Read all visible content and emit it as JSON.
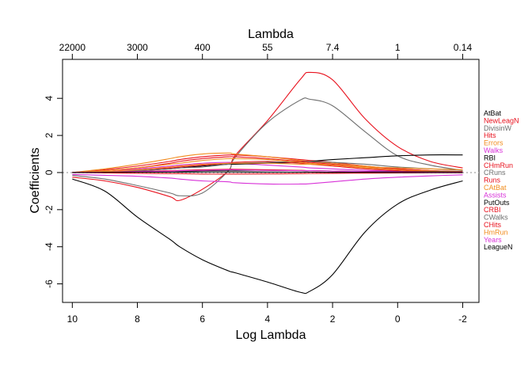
{
  "chart_data": {
    "type": "line",
    "xlabel": "Log Lambda",
    "ylabel": "Coefficients",
    "top_axis_label": "Lambda",
    "xlim": [
      10.3,
      -2.5
    ],
    "ylim": [
      -7,
      6.1
    ],
    "x_ticks": [
      10,
      8,
      6,
      4,
      2,
      0,
      -2
    ],
    "x_tick_labels": [
      "10",
      "8",
      "6",
      "4",
      "2",
      "0",
      "-2"
    ],
    "y_ticks": [
      -6,
      -4,
      -2,
      0,
      2,
      4
    ],
    "y_tick_labels": [
      "-6",
      "-4",
      "-2",
      "0",
      "2",
      "4"
    ],
    "top_ticks": [
      10,
      8,
      6,
      4,
      2,
      0,
      -2
    ],
    "top_tick_labels": [
      "22000",
      "3000",
      "400",
      "55",
      "7.4",
      "1",
      "0.14"
    ],
    "zero_line": true,
    "grid": false,
    "legend_position": "right",
    "x": [
      10,
      9,
      8,
      7,
      6.7,
      6,
      5.2,
      5,
      4,
      3,
      2.7,
      2,
      1,
      0,
      -1,
      -2
    ],
    "series": [
      {
        "name": "AtBat",
        "color": "#000000",
        "values": [
          -0.35,
          -1.0,
          -2.4,
          -3.6,
          -4.0,
          -4.7,
          -5.3,
          -5.4,
          -5.9,
          -6.45,
          -6.4,
          -5.5,
          -3.2,
          -1.7,
          -0.95,
          -0.45
        ]
      },
      {
        "name": "NewLeagN",
        "color": "#e8111d",
        "values": [
          -0.25,
          -0.45,
          -0.8,
          -1.3,
          -1.5,
          -0.9,
          0.1,
          0.9,
          2.8,
          5.0,
          5.4,
          5.0,
          2.9,
          1.4,
          0.6,
          0.25
        ]
      },
      {
        "name": "DivisinW",
        "color": "#6e6e6e",
        "values": [
          -0.15,
          -0.35,
          -0.7,
          -1.1,
          -1.25,
          -1.1,
          0.1,
          0.8,
          2.7,
          3.9,
          3.95,
          3.6,
          2.2,
          0.9,
          0.4,
          0.12
        ]
      },
      {
        "name": "Hits",
        "color": "#e8111d",
        "values": [
          0.0,
          0.15,
          0.35,
          0.6,
          0.7,
          0.85,
          0.95,
          0.95,
          0.85,
          0.7,
          0.65,
          0.55,
          0.35,
          0.2,
          0.1,
          0.05
        ]
      },
      {
        "name": "Errors",
        "color": "#f18c1e",
        "values": [
          0.0,
          0.2,
          0.45,
          0.75,
          0.85,
          1.0,
          1.05,
          1.0,
          0.85,
          0.65,
          0.6,
          0.5,
          0.35,
          0.2,
          0.1,
          0.05
        ]
      },
      {
        "name": "Walks",
        "color": "#d832d8",
        "values": [
          0.0,
          0.1,
          0.2,
          0.35,
          0.4,
          0.5,
          0.55,
          0.5,
          0.4,
          0.3,
          0.25,
          0.2,
          0.12,
          0.08,
          0.05,
          0.03
        ]
      },
      {
        "name": "RBI",
        "color": "#000000",
        "values": [
          0.0,
          0.05,
          0.1,
          0.2,
          0.25,
          0.35,
          0.45,
          0.45,
          0.5,
          0.55,
          0.6,
          0.7,
          0.8,
          0.9,
          0.95,
          0.95
        ]
      },
      {
        "name": "CHmRun",
        "color": "#e8111d",
        "values": [
          0.0,
          0.05,
          0.15,
          0.25,
          0.3,
          0.4,
          0.5,
          0.55,
          0.6,
          0.5,
          0.45,
          0.35,
          0.2,
          0.1,
          0.05,
          0.02
        ]
      },
      {
        "name": "CRuns",
        "color": "#6e6e6e",
        "values": [
          0.0,
          0.05,
          0.1,
          0.2,
          0.25,
          0.3,
          0.45,
          0.5,
          0.55,
          0.6,
          0.6,
          0.55,
          0.45,
          0.3,
          0.2,
          0.12
        ]
      },
      {
        "name": "Runs",
        "color": "#e8111d",
        "values": [
          0.0,
          0.1,
          0.25,
          0.5,
          0.6,
          0.75,
          0.85,
          0.85,
          0.75,
          0.6,
          0.55,
          0.45,
          0.3,
          0.2,
          0.1,
          0.05
        ]
      },
      {
        "name": "CAtBat",
        "color": "#f18c1e",
        "values": [
          0.0,
          0.1,
          0.25,
          0.45,
          0.5,
          0.65,
          0.75,
          0.75,
          0.7,
          0.55,
          0.5,
          0.4,
          0.25,
          0.15,
          0.08,
          0.04
        ]
      },
      {
        "name": "Assists",
        "color": "#d832d8",
        "values": [
          -0.1,
          -0.15,
          -0.2,
          -0.3,
          -0.35,
          -0.45,
          -0.5,
          -0.55,
          -0.62,
          -0.62,
          -0.6,
          -0.5,
          -0.35,
          -0.25,
          -0.18,
          -0.12
        ]
      },
      {
        "name": "PutOuts",
        "color": "#000000",
        "values": [
          0.0,
          0.02,
          0.05,
          0.08,
          0.08,
          0.1,
          0.12,
          0.12,
          0.12,
          0.1,
          0.1,
          0.08,
          0.06,
          0.05,
          0.04,
          0.03
        ]
      },
      {
        "name": "CRBI",
        "color": "#e8111d",
        "values": [
          0.0,
          0.03,
          0.06,
          0.1,
          0.12,
          0.15,
          0.18,
          0.18,
          0.15,
          0.12,
          0.1,
          0.08,
          0.05,
          0.03,
          0.02,
          0.01
        ]
      },
      {
        "name": "CWalks",
        "color": "#6e6e6e",
        "values": [
          0.0,
          0.01,
          0.02,
          0.03,
          0.03,
          0.04,
          0.04,
          0.04,
          0.03,
          0.02,
          0.02,
          0.01,
          0.01,
          0.0,
          0.0,
          0.0
        ]
      },
      {
        "name": "CHits",
        "color": "#e8111d",
        "values": [
          0.0,
          -0.02,
          -0.04,
          -0.06,
          -0.06,
          -0.08,
          -0.08,
          -0.08,
          -0.07,
          -0.06,
          -0.05,
          -0.04,
          -0.03,
          -0.02,
          -0.01,
          -0.01
        ]
      },
      {
        "name": "HmRun",
        "color": "#f18c1e",
        "values": [
          0.0,
          0.05,
          0.15,
          0.3,
          0.35,
          0.45,
          0.5,
          0.5,
          0.5,
          0.45,
          0.45,
          0.4,
          0.3,
          0.25,
          0.2,
          0.15
        ]
      },
      {
        "name": "Years",
        "color": "#d832d8",
        "values": [
          0.0,
          0.02,
          0.05,
          0.08,
          0.1,
          0.12,
          0.15,
          0.15,
          0.12,
          0.1,
          0.1,
          0.08,
          0.05,
          0.03,
          0.02,
          0.01
        ]
      },
      {
        "name": "LeagueN",
        "color": "#000000",
        "values": [
          0.0,
          0.01,
          0.02,
          0.02,
          0.02,
          0.03,
          0.03,
          0.03,
          0.02,
          0.02,
          0.02,
          0.01,
          0.01,
          0.0,
          0.0,
          0.0
        ]
      }
    ]
  }
}
